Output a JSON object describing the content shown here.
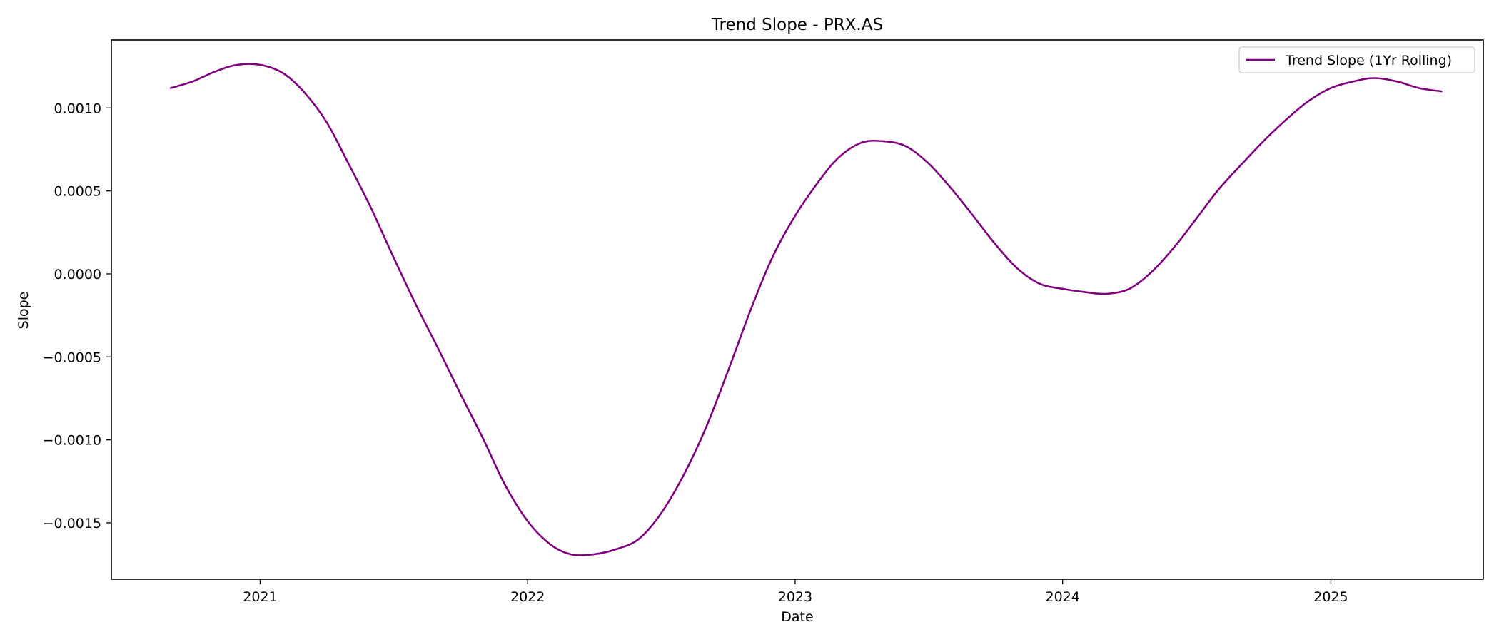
{
  "chart_data": {
    "type": "line",
    "title": "Trend Slope - PRX.AS",
    "xlabel": "Date",
    "ylabel": "Slope",
    "x_ticks": [
      "2021",
      "2022",
      "2023",
      "2024",
      "2025"
    ],
    "y_ticks": [
      "0.0010",
      "0.0005",
      "0.0000",
      "−0.0005",
      "−0.0010",
      "−0.0015"
    ],
    "y_tick_values": [
      0.001,
      0.0005,
      0.0,
      -0.0005,
      -0.001,
      -0.0015
    ],
    "xlim": [
      "2020-06-12",
      "2025-07-28"
    ],
    "ylim": [
      -0.00184,
      0.00141
    ],
    "grid": false,
    "legend_placement": "top-right",
    "series": [
      {
        "name": "Trend Slope (1Yr Rolling)",
        "color": "#800080",
        "x": [
          "2020-09-01",
          "2020-10-01",
          "2020-11-01",
          "2020-12-01",
          "2021-01-01",
          "2021-02-01",
          "2021-03-01",
          "2021-04-01",
          "2021-05-01",
          "2021-06-01",
          "2021-07-01",
          "2021-08-01",
          "2021-09-01",
          "2021-10-01",
          "2021-11-01",
          "2021-12-01",
          "2022-01-01",
          "2022-02-01",
          "2022-03-01",
          "2022-04-01",
          "2022-05-01",
          "2022-06-01",
          "2022-07-01",
          "2022-08-01",
          "2022-09-01",
          "2022-10-01",
          "2022-11-01",
          "2022-12-01",
          "2023-01-01",
          "2023-02-01",
          "2023-03-01",
          "2023-04-01",
          "2023-05-01",
          "2023-06-01",
          "2023-07-01",
          "2023-08-01",
          "2023-09-01",
          "2023-10-01",
          "2023-11-01",
          "2023-12-01",
          "2024-01-01",
          "2024-02-01",
          "2024-03-01",
          "2024-04-01",
          "2024-05-01",
          "2024-06-01",
          "2024-07-01",
          "2024-08-01",
          "2024-09-01",
          "2024-10-01",
          "2024-11-01",
          "2024-12-01",
          "2025-01-01",
          "2025-02-01",
          "2025-03-01",
          "2025-04-01",
          "2025-05-01",
          "2025-06-01"
        ],
        "y": [
          0.00112,
          0.00116,
          0.00122,
          0.00126,
          0.00126,
          0.00121,
          0.0011,
          0.00092,
          0.00067,
          0.0004,
          0.00011,
          -0.00018,
          -0.00045,
          -0.00072,
          -0.00099,
          -0.00127,
          -0.00149,
          -0.00163,
          -0.00169,
          -0.00169,
          -0.00166,
          -0.0016,
          -0.00145,
          -0.00122,
          -0.00093,
          -0.00059,
          -0.00022,
          0.0001,
          0.00035,
          0.00055,
          0.0007,
          0.00079,
          0.0008,
          0.00077,
          0.00067,
          0.00052,
          0.00035,
          0.00018,
          3e-05,
          -6e-05,
          -9e-05,
          -0.00011,
          -0.00012,
          -9e-05,
          1e-05,
          0.00016,
          0.00033,
          0.00051,
          0.00066,
          0.0008,
          0.00093,
          0.00104,
          0.00112,
          0.00116,
          0.00118,
          0.00116,
          0.00112,
          0.0011
        ]
      }
    ]
  }
}
